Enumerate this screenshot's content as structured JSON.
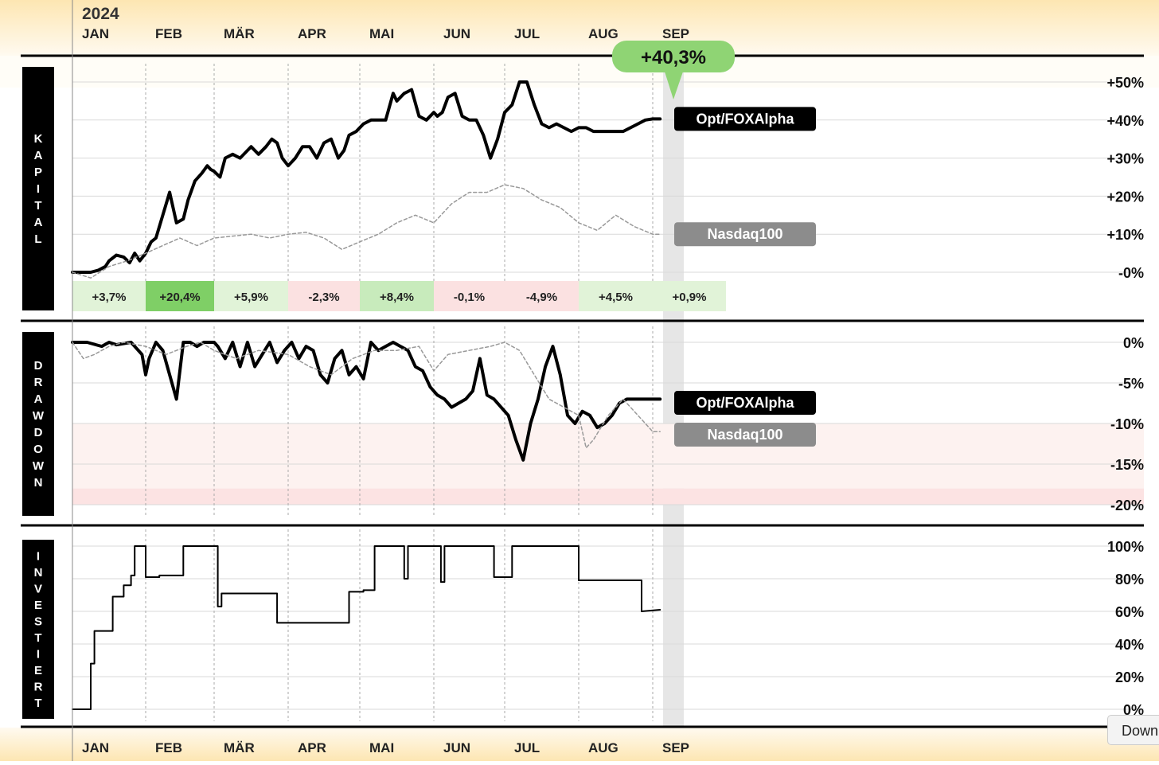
{
  "chart_data": {
    "year": "2024",
    "months": [
      "JAN",
      "FEB",
      "MÄR",
      "APR",
      "MAI",
      "JUN",
      "JUL",
      "AUG",
      "SEP"
    ],
    "highlight": {
      "value": "+40,3%"
    },
    "panels": [
      {
        "id": "kapital",
        "type": "line",
        "side_label": "KAPITAL",
        "ylim": [
          -4,
          53
        ],
        "yticks": [
          {
            "v": 50,
            "label": "+50%"
          },
          {
            "v": 40,
            "label": "+40%"
          },
          {
            "v": 30,
            "label": "+30%"
          },
          {
            "v": 20,
            "label": "+20%"
          },
          {
            "v": 10,
            "label": "+10%"
          },
          {
            "v": 0,
            "label": "-0%"
          }
        ],
        "series": [
          {
            "name": "Opt/FOXAlpha",
            "x": [
              0,
              0.12,
              0.25,
              0.35,
              0.45,
              0.5,
              0.6,
              0.7,
              0.78,
              0.85,
              0.92,
              1.0,
              1.08,
              1.15,
              1.25,
              1.35,
              1.45,
              1.55,
              1.62,
              1.72,
              1.82,
              1.9,
              1.95,
              2.0,
              2.08,
              2.15,
              2.25,
              2.35,
              2.45,
              2.5,
              2.6,
              2.7,
              2.78,
              2.85,
              2.92,
              3.0,
              3.1,
              3.2,
              3.3,
              3.4,
              3.5,
              3.6,
              3.7,
              3.78,
              3.85,
              3.95,
              4.05,
              4.15,
              4.25,
              4.35,
              4.45,
              4.5,
              4.6,
              4.7,
              4.8,
              4.9,
              5.0,
              5.05,
              5.12,
              5.2,
              5.3,
              5.4,
              5.5,
              5.6,
              5.7,
              5.8,
              5.9,
              6.0,
              6.1,
              6.2,
              6.3,
              6.4,
              6.5,
              6.6,
              6.7,
              6.8,
              6.9,
              7.0,
              7.1,
              7.2,
              7.3,
              7.4,
              7.5,
              7.6,
              7.7,
              7.8,
              7.9,
              8.0,
              8.1
            ],
            "y": [
              0,
              0,
              0,
              0.5,
              1.5,
              3,
              4.5,
              4,
              2.5,
              5,
              3,
              5,
              8,
              9,
              15,
              21,
              13,
              14,
              19,
              24,
              26,
              28,
              27,
              26.5,
              25,
              30,
              31,
              30,
              32,
              33,
              31,
              33,
              35,
              34,
              30,
              28,
              30,
              33,
              33,
              30,
              34,
              35,
              30,
              32,
              36,
              37,
              39,
              40,
              40,
              40,
              47,
              45,
              47,
              48,
              41,
              40,
              42,
              41,
              42,
              46,
              47,
              41,
              40,
              40,
              36,
              30,
              35,
              42,
              44,
              50,
              50,
              44,
              39,
              38,
              39,
              38,
              37,
              38,
              38,
              37,
              37,
              37,
              37,
              37,
              38,
              39,
              40,
              40.3,
              40.3
            ],
            "color": "#000",
            "width": 4
          },
          {
            "name": "Nasdaq100",
            "x": [
              0,
              0.25,
              0.5,
              0.75,
              1.0,
              1.25,
              1.5,
              1.75,
              2.0,
              2.25,
              2.5,
              2.75,
              3.0,
              3.25,
              3.5,
              3.75,
              4.0,
              4.25,
              4.5,
              4.75,
              5.0,
              5.25,
              5.5,
              5.75,
              6.0,
              6.25,
              6.5,
              6.75,
              7.0,
              7.25,
              7.5,
              7.75,
              8.0,
              8.1
            ],
            "y": [
              0,
              -1.5,
              1.5,
              3,
              5,
              7,
              9,
              7,
              9,
              9.5,
              10,
              9,
              10,
              10.5,
              9,
              6,
              8,
              10,
              13,
              15,
              13,
              18,
              21,
              21,
              23,
              22,
              19,
              17,
              13,
              11,
              15,
              12,
              10,
              10
            ],
            "color": "#999",
            "width": 1.5,
            "dashed": true
          }
        ],
        "end_labels": [
          {
            "series": "Opt/FOXAlpha",
            "label": "Opt/FOXAlpha"
          },
          {
            "series": "Nasdaq100",
            "label": "Nasdaq100"
          }
        ],
        "monthly_returns": [
          {
            "month": "JAN",
            "label": "+3,7%",
            "tone": "pos"
          },
          {
            "month": "FEB",
            "label": "+20,4%",
            "tone": "strong"
          },
          {
            "month": "MÄR",
            "label": "+5,9%",
            "tone": "pos"
          },
          {
            "month": "APR",
            "label": "-2,3%",
            "tone": "neg"
          },
          {
            "month": "MAI",
            "label": "+8,4%",
            "tone": "pos2"
          },
          {
            "month": "JUN",
            "label": "-0,1%",
            "tone": "neg"
          },
          {
            "month": "JUL",
            "label": "-4,9%",
            "tone": "neg"
          },
          {
            "month": "AUG",
            "label": "+4,5%",
            "tone": "pos"
          },
          {
            "month": "SEP",
            "label": "+0,9%",
            "tone": "pos"
          }
        ]
      },
      {
        "id": "drawdown",
        "type": "line",
        "side_label": "DRAWDOWN",
        "ylim": [
          -21,
          1
        ],
        "yticks": [
          {
            "v": 0,
            "label": "0%"
          },
          {
            "v": -5,
            "label": "-5%"
          },
          {
            "v": -10,
            "label": "-10%"
          },
          {
            "v": -15,
            "label": "-15%"
          },
          {
            "v": -20,
            "label": "-20%"
          }
        ],
        "bands": [
          {
            "from": -10,
            "to": -18,
            "color": "#fdf2f0"
          },
          {
            "from": -18,
            "to": -20,
            "color": "#fce3e3"
          }
        ],
        "series": [
          {
            "name": "Opt/FOXAlpha",
            "x": [
              0,
              0.2,
              0.4,
              0.5,
              0.6,
              0.8,
              0.95,
              1.0,
              1.05,
              1.15,
              1.25,
              1.35,
              1.45,
              1.55,
              1.65,
              1.75,
              1.85,
              2.0,
              2.05,
              2.15,
              2.25,
              2.35,
              2.45,
              2.55,
              2.65,
              2.75,
              2.85,
              2.95,
              3.05,
              3.15,
              3.25,
              3.35,
              3.45,
              3.55,
              3.65,
              3.75,
              3.85,
              3.95,
              4.05,
              4.15,
              4.25,
              4.35,
              4.45,
              4.55,
              4.65,
              4.75,
              4.85,
              4.95,
              5.05,
              5.15,
              5.25,
              5.35,
              5.45,
              5.55,
              5.65,
              5.75,
              5.85,
              5.95,
              6.05,
              6.15,
              6.25,
              6.35,
              6.45,
              6.55,
              6.65,
              6.75,
              6.85,
              6.95,
              7.05,
              7.15,
              7.25,
              7.35,
              7.45,
              7.55,
              7.65,
              7.75,
              7.85,
              7.95,
              8.05,
              8.1
            ],
            "y": [
              0,
              0,
              -0.5,
              0,
              -0.3,
              0,
              -1.5,
              -4,
              -2,
              0,
              -1,
              -4,
              -7,
              0,
              0,
              -0.5,
              0,
              0,
              -0.5,
              -2,
              0,
              -3,
              0,
              -3,
              -1.5,
              0,
              -2.5,
              -1,
              0,
              -2,
              -0.5,
              -1,
              -4,
              -5,
              -2,
              -1,
              -4,
              -3,
              -4.5,
              0,
              -1,
              -0.5,
              0,
              -0.5,
              -1,
              -3,
              -3.5,
              -5.5,
              -6.5,
              -7,
              -8,
              -7.5,
              -7,
              -6,
              -2,
              -6.5,
              -7,
              -8,
              -9,
              -12,
              -14.5,
              -10,
              -7,
              -3,
              -0.5,
              -4,
              -9,
              -10,
              -8.5,
              -9,
              -10.5,
              -10,
              -9,
              -7.5,
              -7,
              -7,
              -7,
              -7,
              -7,
              -7
            ],
            "color": "#000",
            "width": 4
          },
          {
            "name": "Nasdaq100",
            "x": [
              0,
              0.15,
              0.3,
              0.5,
              0.7,
              1.0,
              1.3,
              1.6,
              1.8,
              2.0,
              2.3,
              2.6,
              3.0,
              3.3,
              3.6,
              3.9,
              4.2,
              4.5,
              4.8,
              5.0,
              5.2,
              5.5,
              5.8,
              6.0,
              6.2,
              6.4,
              6.6,
              6.8,
              7.0,
              7.1,
              7.2,
              7.4,
              7.6,
              7.8,
              8.0,
              8.1
            ],
            "y": [
              0,
              -2,
              -1.5,
              -0.5,
              0,
              -0.5,
              -1.5,
              -0.5,
              0,
              -1,
              -2,
              -1,
              -1.5,
              -3,
              -4,
              -2,
              -1,
              -1,
              -0.5,
              -3.5,
              -1.5,
              -1,
              -0.5,
              0,
              -1,
              -4,
              -7,
              -8,
              -9,
              -13,
              -12,
              -9,
              -7,
              -9,
              -11,
              -11
            ],
            "color": "#999",
            "width": 1.5,
            "dashed": true
          }
        ],
        "end_labels": [
          {
            "series": "Opt/FOXAlpha",
            "label": "Opt/FOXAlpha"
          },
          {
            "series": "Nasdaq100",
            "label": "Nasdaq100"
          }
        ]
      },
      {
        "id": "investiert",
        "type": "step",
        "side_label": "INVESTIERT",
        "ylim": [
          0,
          100
        ],
        "yticks": [
          {
            "v": 100,
            "label": "100%"
          },
          {
            "v": 80,
            "label": "80%"
          },
          {
            "v": 60,
            "label": "60%"
          },
          {
            "v": 40,
            "label": "40%"
          },
          {
            "v": 20,
            "label": "20%"
          },
          {
            "v": 0,
            "label": "0%"
          }
        ],
        "series": [
          {
            "name": "Investiert",
            "x": [
              0,
              0.25,
              0.25,
              0.3,
              0.3,
              0.55,
              0.55,
              0.7,
              0.7,
              0.8,
              0.8,
              0.85,
              0.85,
              1.0,
              1.0,
              1.0,
              1.0,
              1.2,
              1.2,
              1.55,
              1.55,
              2.05,
              2.05,
              2.1,
              2.1,
              2.85,
              2.85,
              3.85,
              3.85,
              4.05,
              4.05,
              4.2,
              4.2,
              4.6,
              4.6,
              4.65,
              4.65,
              5.1,
              5.1,
              5.15,
              5.15,
              5.85,
              5.85,
              6.1,
              6.1,
              7.0,
              7.0,
              7.85,
              7.85,
              8.1
            ],
            "y": [
              0,
              0,
              28,
              28,
              48,
              48,
              69,
              69,
              76,
              76,
              82,
              82,
              100,
              100,
              81,
              81,
              81,
              81,
              82,
              82,
              100,
              100,
              63,
              63,
              71,
              71,
              53,
              53,
              72,
              72,
              73,
              73,
              100,
              100,
              80,
              80,
              100,
              100,
              78,
              78,
              100,
              100,
              81,
              81,
              100,
              100,
              79,
              79,
              60,
              61
            ],
            "color": "#000",
            "width": 2
          }
        ]
      }
    ],
    "download_label": "Down"
  }
}
